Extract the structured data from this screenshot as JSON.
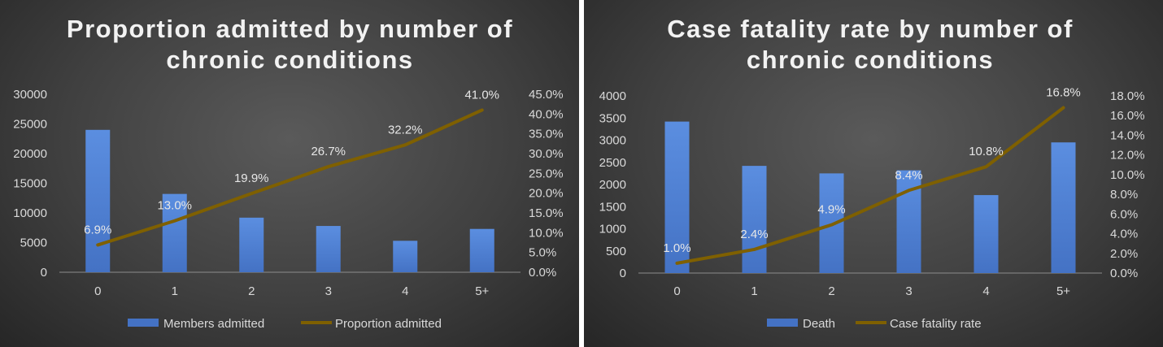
{
  "colors": {
    "bar": "#4472c4",
    "bar_light": "#5b8ee0",
    "line": "#7f6000",
    "axis": "#8c8c8c",
    "text": "#d9d9d9"
  },
  "chart_data": [
    {
      "type": "bar",
      "title_lines": [
        "Proportion admitted by number of",
        "chronic conditions"
      ],
      "categories": [
        "0",
        "1",
        "2",
        "3",
        "4",
        "5+"
      ],
      "series": [
        {
          "name": "Members admitted",
          "type": "bar",
          "axis": "left",
          "values": [
            24000,
            13200,
            9200,
            7800,
            5300,
            7300
          ]
        },
        {
          "name": "Proportion admitted",
          "type": "line",
          "axis": "right",
          "values": [
            6.9,
            13.0,
            19.9,
            26.7,
            32.2,
            41.0
          ],
          "labels": [
            "6.9%",
            "13.0%",
            "19.9%",
            "26.7%",
            "32.2%",
            "41.0%"
          ]
        }
      ],
      "ylim_left": [
        0,
        30000
      ],
      "yticks_left": [
        "0",
        "5000",
        "10000",
        "15000",
        "20000",
        "25000",
        "30000"
      ],
      "ylim_right": [
        0,
        45
      ],
      "yticks_right": [
        "0.0%",
        "5.0%",
        "10.0%",
        "15.0%",
        "20.0%",
        "25.0%",
        "30.0%",
        "35.0%",
        "40.0%",
        "45.0%"
      ],
      "legend_position": "bottom",
      "grid": false
    },
    {
      "type": "bar",
      "title_lines": [
        "Case fatality rate by number of",
        "chronic conditions"
      ],
      "categories": [
        "0",
        "1",
        "2",
        "3",
        "4",
        "5+"
      ],
      "series": [
        {
          "name": "Death",
          "type": "bar",
          "axis": "left",
          "values": [
            3420,
            2420,
            2250,
            2320,
            1760,
            2950
          ]
        },
        {
          "name": "Case fatality rate",
          "type": "line",
          "axis": "right",
          "values": [
            1.0,
            2.4,
            4.9,
            8.4,
            10.8,
            16.8
          ],
          "labels": [
            "1.0%",
            "2.4%",
            "4.9%",
            "8.4%",
            "10.8%",
            "16.8%"
          ]
        }
      ],
      "ylim_left": [
        0,
        4000
      ],
      "yticks_left": [
        "0",
        "500",
        "1000",
        "1500",
        "2000",
        "2500",
        "3000",
        "3500",
        "4000"
      ],
      "ylim_right": [
        0,
        18
      ],
      "yticks_right": [
        "0.0%",
        "2.0%",
        "4.0%",
        "6.0%",
        "8.0%",
        "10.0%",
        "12.0%",
        "14.0%",
        "16.0%",
        "18.0%"
      ],
      "legend_position": "bottom",
      "grid": false
    }
  ]
}
